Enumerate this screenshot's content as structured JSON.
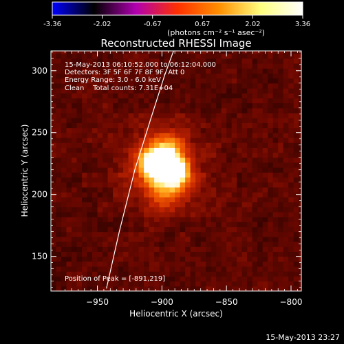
{
  "chart_data": {
    "type": "heatmap",
    "title": "Reconstructed RHESSI Image",
    "xlabel": "Heliocentric X (arcsec)",
    "ylabel": "Heliocentric Y (arcsec)",
    "xlim": [
      -986,
      -792
    ],
    "ylim": [
      122,
      316
    ],
    "x_ticks": [
      -950,
      -900,
      -850,
      -800
    ],
    "y_ticks": [
      150,
      200,
      250,
      300
    ],
    "colorbar": {
      "min": -3.36,
      "max": 3.36,
      "tick_values": [
        -3.36,
        -2.02,
        -0.67,
        0.67,
        2.02,
        3.36
      ],
      "tick_labels": [
        "-3.36",
        "-2.02",
        "-0.67",
        "0.67",
        "2.02",
        "3.36"
      ],
      "units_label": "(photons cm⁻² s⁻¹ asec⁻²)",
      "stops": [
        "#0000ff",
        "#000000",
        "#b000b0",
        "#ff3000",
        "#ff9000",
        "#ffff80",
        "#ffffff"
      ]
    },
    "info_lines": [
      "15-May-2013 06:10:52.000 to 06:12:04.000",
      "Detectors: 3F 5F 6F 7F 8F 9F, Att 0",
      "Energy Range: 3.0 - 6.0 keV",
      "Clean    Total counts: 7.31E+04"
    ],
    "peak_label": "Position of Peak = [-891,219]",
    "peak": [
      -891,
      219
    ],
    "sources": [
      {
        "x": -891,
        "y": 219,
        "amplitude": 3.36,
        "sigma": 7
      },
      {
        "x": -906,
        "y": 226,
        "amplitude": 2.3,
        "sigma": 8
      },
      {
        "x": -895,
        "y": 237,
        "amplitude": 1.3,
        "sigma": 8
      },
      {
        "x": -898,
        "y": 205,
        "amplitude": 1.0,
        "sigma": 10
      },
      {
        "x": -900,
        "y": 222,
        "amplitude": 1.1,
        "sigma": 22
      }
    ],
    "limb_curve": [
      [
        -943,
        124
      ],
      [
        -933,
        170
      ],
      [
        -921,
        220
      ],
      [
        -909,
        260
      ],
      [
        -898,
        296
      ],
      [
        -891,
        316
      ]
    ]
  },
  "footer": {
    "timestamp": "15-May-2013 23:27"
  }
}
